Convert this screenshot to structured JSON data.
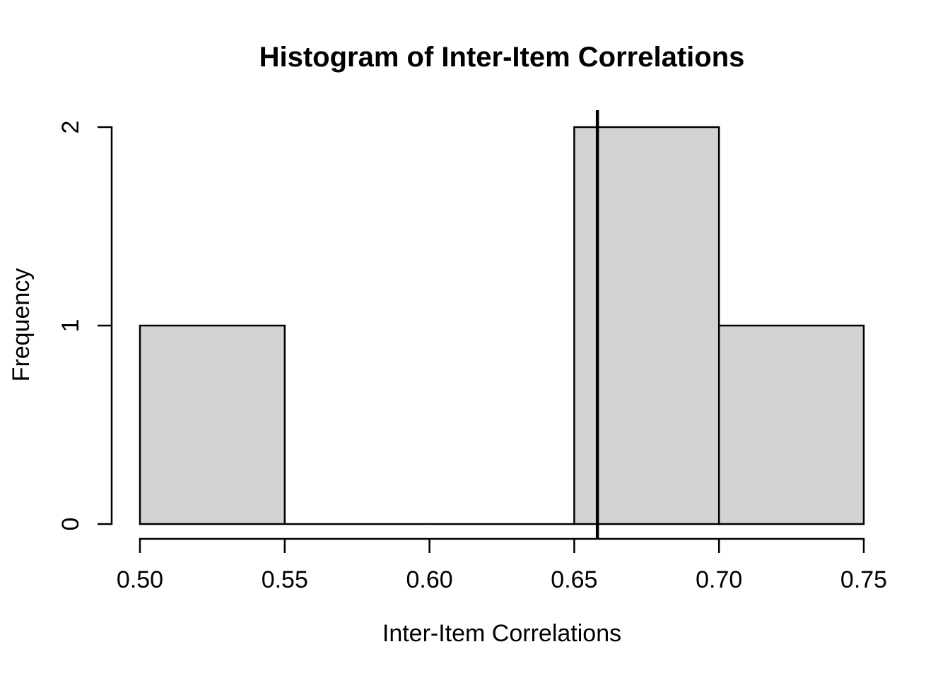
{
  "chart_data": {
    "type": "bar",
    "subtype": "histogram",
    "title": "Histogram of Inter-Item Correlations",
    "xlabel": "Inter-Item Correlations",
    "ylabel": "Frequency",
    "bin_breaks": [
      0.5,
      0.55,
      0.6,
      0.65,
      0.7,
      0.75
    ],
    "counts": [
      1,
      0,
      0,
      2,
      1
    ],
    "x_tick_values": [
      0.5,
      0.55,
      0.6,
      0.65,
      0.7,
      0.75
    ],
    "x_tick_labels": [
      "0.50",
      "0.55",
      "0.60",
      "0.65",
      "0.70",
      "0.75"
    ],
    "y_tick_values": [
      0,
      1,
      2
    ],
    "y_tick_labels": [
      "0",
      "1",
      "2"
    ],
    "xlim": [
      0.5,
      0.75
    ],
    "ylim": [
      0,
      2
    ],
    "vertical_line_x": 0.658,
    "grid": false,
    "legend": null,
    "colors": {
      "bar_fill": "#d3d3d3",
      "bar_stroke": "#000000",
      "axis": "#000000",
      "text": "#000000",
      "vline": "#000000",
      "background": "#ffffff"
    }
  }
}
